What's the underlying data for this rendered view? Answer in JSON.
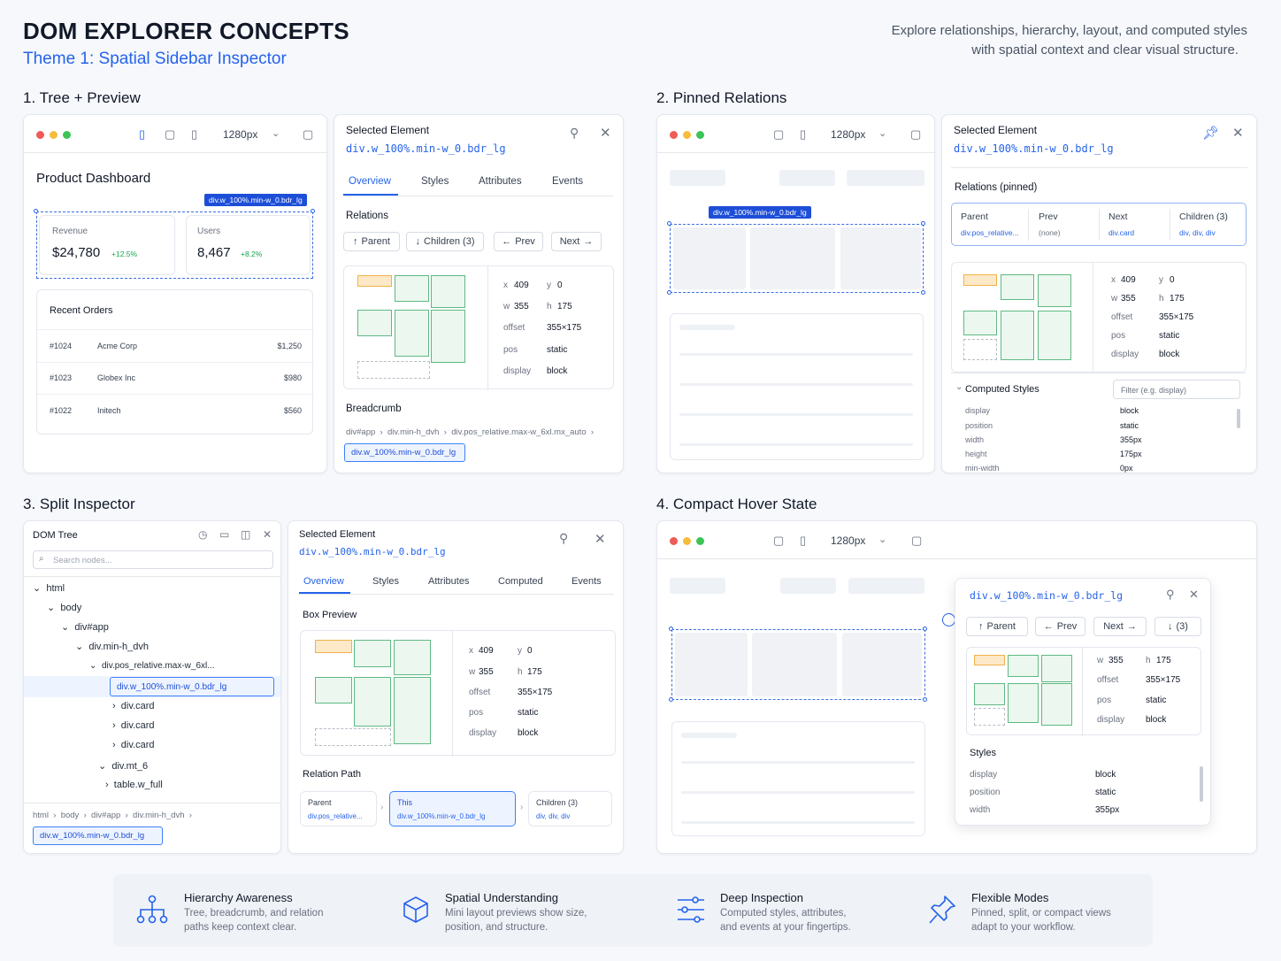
{
  "header": {
    "title": "DOM EXPLORER CONCEPTS",
    "subtitle": "Theme 1: Spatial Sidebar Inspector",
    "tagline_line1": "Explore relationships, hierarchy, layout, and computed styles",
    "tagline_line2": "with spatial context and clear visual structure."
  },
  "sections": {
    "s1": "1. Tree + Preview",
    "s2": "2. Pinned Relations",
    "s3": "3. Split Inspector",
    "s4": "4. Compact Hover State"
  },
  "common": {
    "viewport": "1280px",
    "selected_label": "Selected Element",
    "selector": "div.w_100%.min-w_0.bdr_lg",
    "x_label": "x",
    "x_val": "409",
    "y_label": "y",
    "y_val": "0",
    "w_label": "w",
    "w_val": "355",
    "h_label": "h",
    "h_val": "175",
    "offset_label": "offset",
    "offset_val": "355×175",
    "pos_label": "pos",
    "pos_val": "static",
    "display_label": "display",
    "display_val": "block"
  },
  "panel1": {
    "page_title": "Product Dashboard",
    "revenue_label": "Revenue",
    "revenue_value": "$24,780",
    "revenue_delta": "+12.5%",
    "users_label": "Users",
    "users_value": "8,467",
    "users_delta": "+8.2%",
    "orders_title": "Recent Orders",
    "orders": [
      {
        "id": "#1024",
        "name": "Acme Corp",
        "amount": "$1,250"
      },
      {
        "id": "#1023",
        "name": "Globex Inc",
        "amount": "$980"
      },
      {
        "id": "#1022",
        "name": "Initech",
        "amount": "$560"
      }
    ],
    "tabs": [
      "Overview",
      "Styles",
      "Attributes",
      "Events"
    ],
    "relations_title": "Relations",
    "rel_parent": "Parent",
    "rel_children": "Children (3)",
    "rel_prev": "Prev",
    "rel_next": "Next",
    "breadcrumb_title": "Breadcrumb",
    "crumbs": [
      "div#app",
      "div.min-h_dvh",
      "div.pos_relative.max-w_6xl.mx_auto"
    ]
  },
  "panel2": {
    "relations_title": "Relations (pinned)",
    "rel": [
      {
        "label": "Parent",
        "value": "div.pos_relative..."
      },
      {
        "label": "Prev",
        "value": "(none)"
      },
      {
        "label": "Next",
        "value": "div.card"
      },
      {
        "label": "Children (3)",
        "value": "div, div, div"
      }
    ],
    "computed_title": "Computed Styles",
    "filter_placeholder": "Filter (e.g. display)",
    "styles": [
      {
        "k": "display",
        "v": "block"
      },
      {
        "k": "position",
        "v": "static"
      },
      {
        "k": "width",
        "v": "355px"
      },
      {
        "k": "height",
        "v": "175px"
      },
      {
        "k": "min-width",
        "v": "0px"
      }
    ]
  },
  "panel3": {
    "tree_title": "DOM Tree",
    "search_placeholder": "Search nodes...",
    "nodes": [
      "html",
      "body",
      "div#app",
      "div.min-h_dvh",
      "div.pos_relative.max-w_6xl...",
      "div.w_100%.min-w_0.bdr_lg",
      "div.card",
      "div.card",
      "div.card",
      "div.mt_6",
      "table.w_full"
    ],
    "crumbs": [
      "html",
      "body",
      "div#app",
      "div.min-h_dvh"
    ],
    "tabs": [
      "Overview",
      "Styles",
      "Attributes",
      "Computed",
      "Events"
    ],
    "box_title": "Box Preview",
    "path_title": "Relation Path",
    "path": [
      {
        "label": "Parent",
        "value": "div.pos_relative..."
      },
      {
        "label": "This",
        "value": "div.w_100%.min-w_0.bdr_lg"
      },
      {
        "label": "Children (3)",
        "value": "div, div, div"
      }
    ]
  },
  "panel4": {
    "parent": "Parent",
    "prev": "Prev",
    "next": "Next",
    "children": "(3)",
    "styles_title": "Styles",
    "styles": [
      {
        "k": "display",
        "v": "block"
      },
      {
        "k": "position",
        "v": "static"
      },
      {
        "k": "width",
        "v": "355px"
      }
    ]
  },
  "features": [
    {
      "icon": "hierarchy-icon",
      "title": "Hierarchy Awareness",
      "line1": "Tree, breadcrumb, and relation",
      "line2": "paths keep context clear."
    },
    {
      "icon": "cube-icon",
      "title": "Spatial Understanding",
      "line1": "Mini layout previews show size,",
      "line2": "position, and structure."
    },
    {
      "icon": "sliders-icon",
      "title": "Deep Inspection",
      "line1": "Computed styles, attributes,",
      "line2": "and events at your fingertips."
    },
    {
      "icon": "pin-icon",
      "title": "Flexible Modes",
      "line1": "Pinned, split, or compact views",
      "line2": "adapt to your workflow."
    }
  ],
  "colors": {
    "accent": "#2563eb",
    "selection": "#1d4ed8",
    "positive": "#16a34a",
    "mini_yellow": "#f0b24a",
    "mini_green": "#5fb983"
  }
}
